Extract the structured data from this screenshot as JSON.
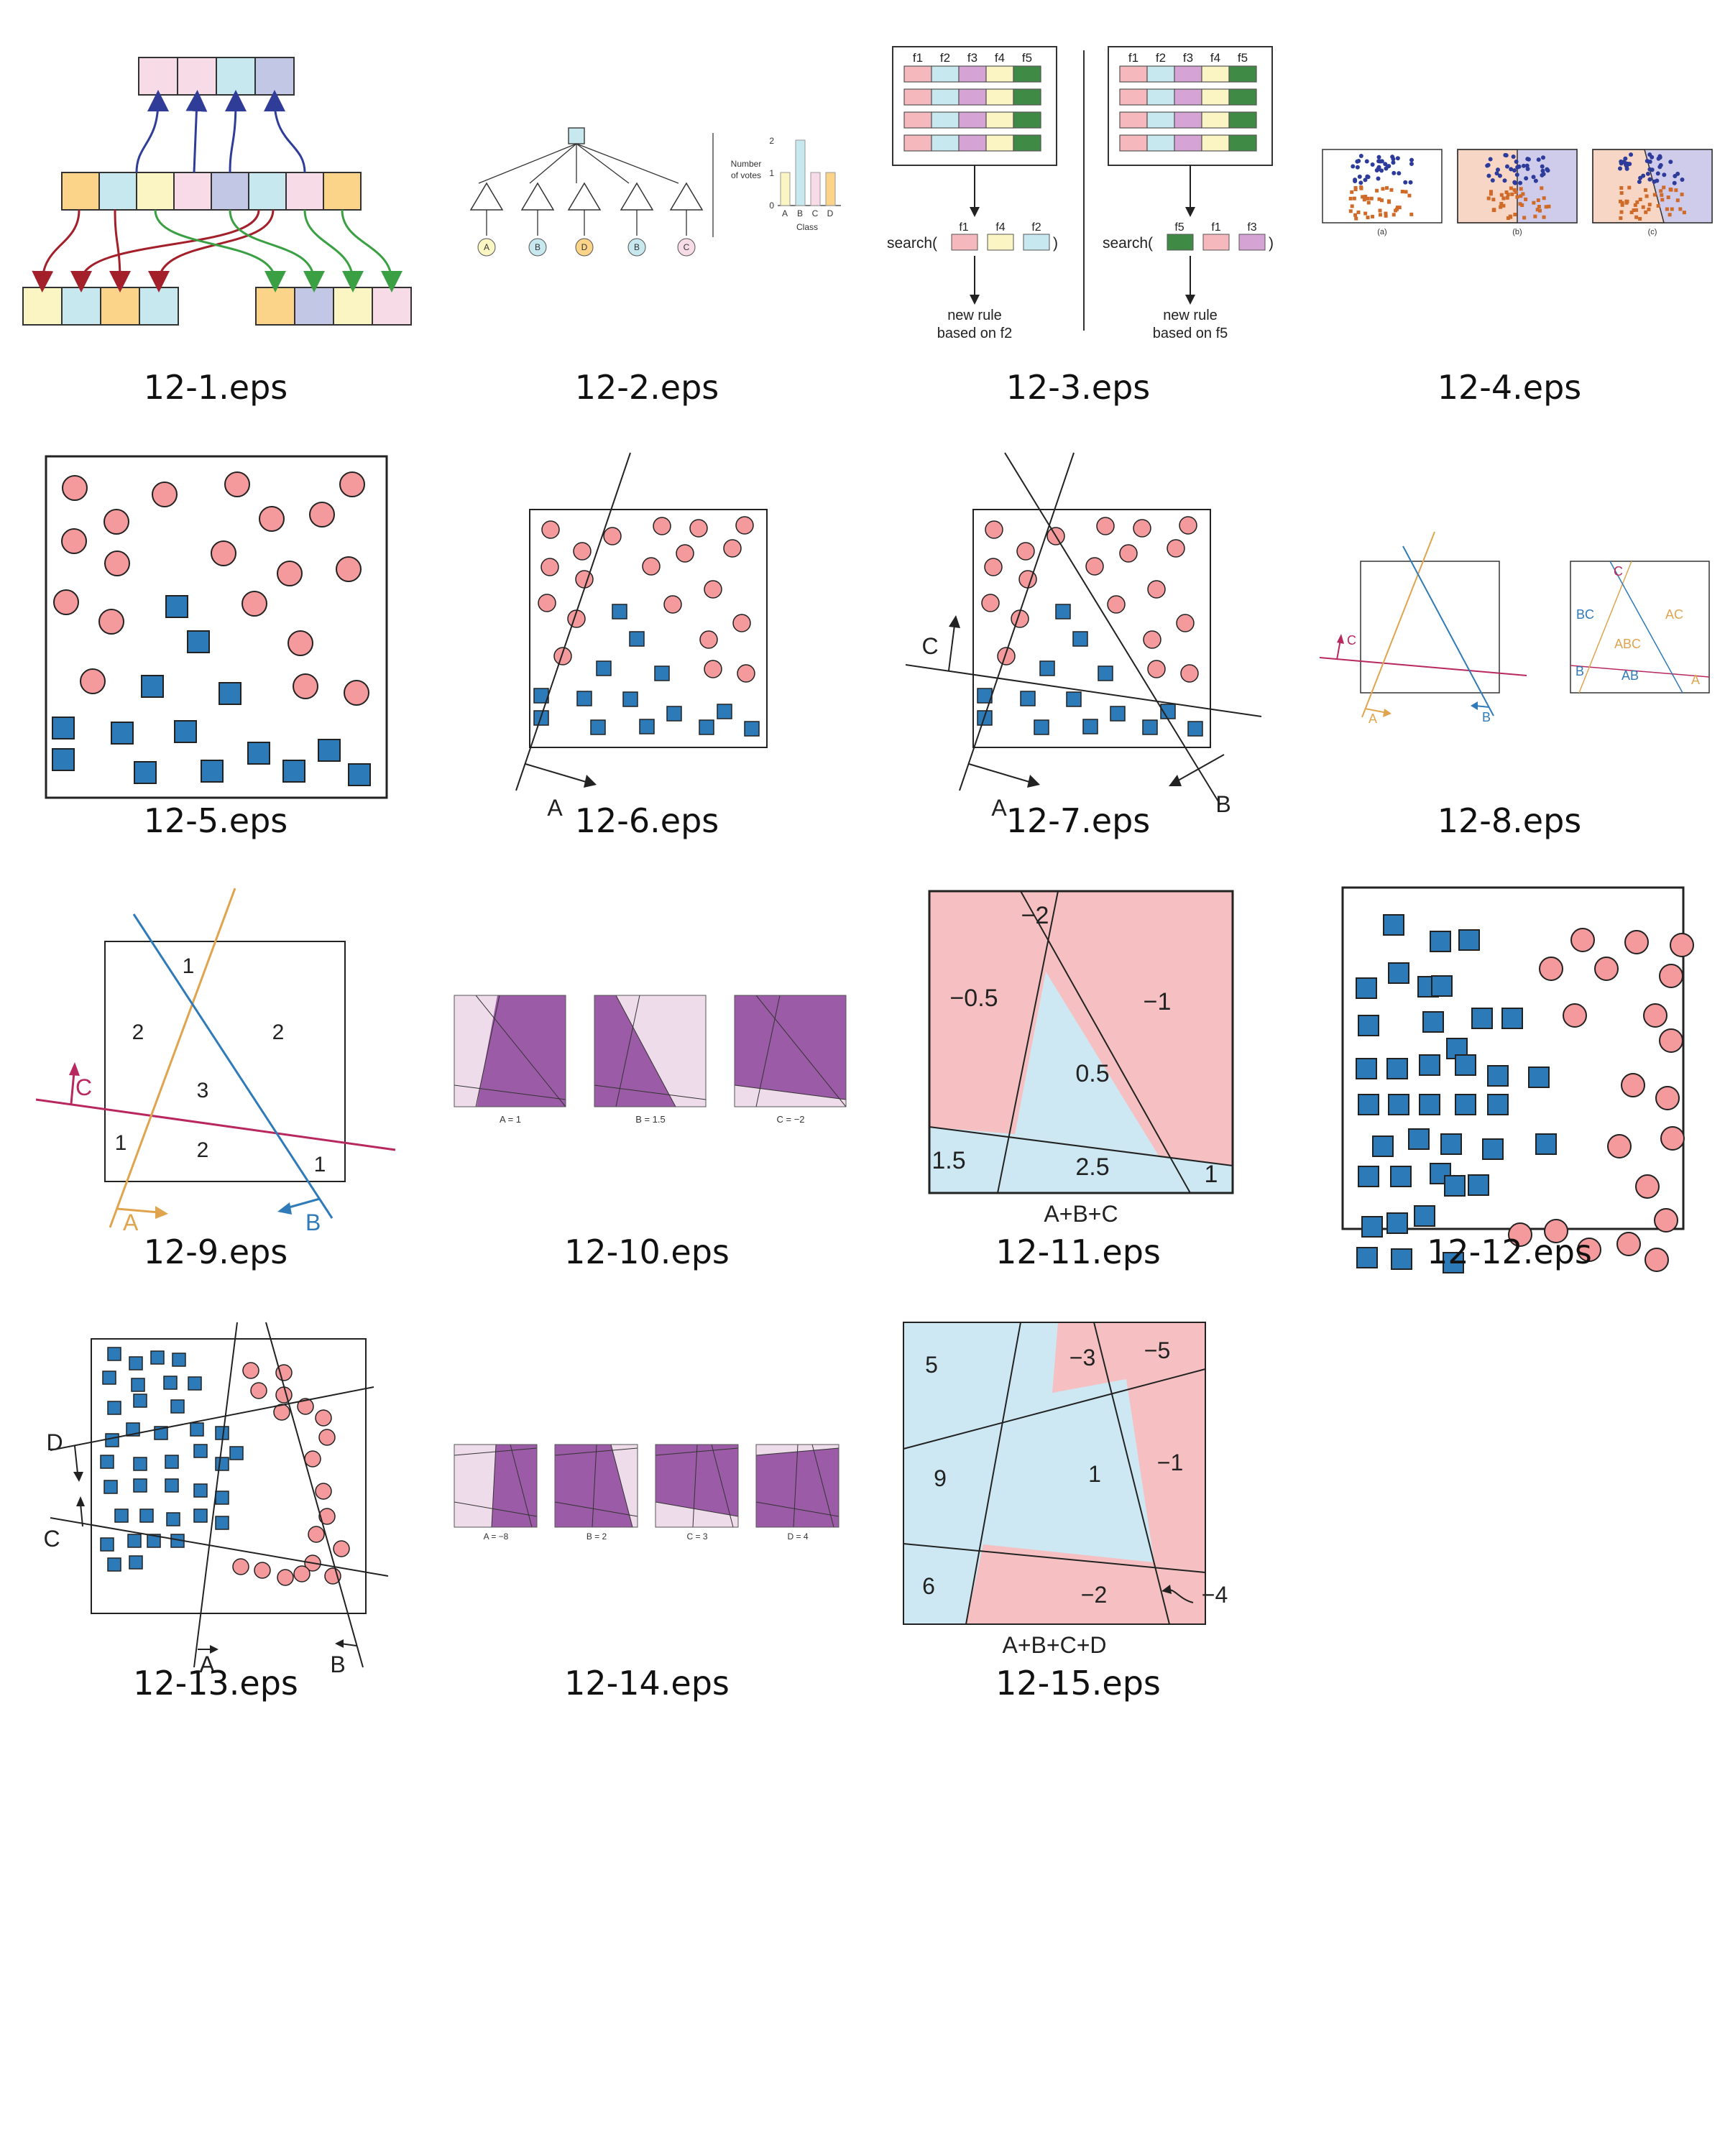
{
  "captions": [
    "12-1.eps",
    "12-2.eps",
    "12-3.eps",
    "12-4.eps",
    "12-5.eps",
    "12-6.eps",
    "12-7.eps",
    "12-8.eps",
    "12-9.eps",
    "12-10.eps",
    "12-11.eps",
    "12-12.eps",
    "12-13.eps",
    "12-14.eps",
    "12-15.eps"
  ],
  "colors": {
    "pink": "#f7dce8",
    "blue": "#c8e8f0",
    "yellow": "#fbf5c4",
    "lav": "#c3c7e6",
    "orange": "#fbd489",
    "green": "#3f8b46",
    "mauve": "#d5a3d4",
    "red": "#f49a9c",
    "square": "#2d7ab8",
    "purple": "#9b5ba6",
    "lightpurple": "#eedcea",
    "regionRed": "#f6c0c2",
    "regionBlue": "#cde8f2",
    "dotBlue": "#2d3b9a",
    "dotOrange": "#d06a28",
    "lineOrange": "#e0a44e",
    "lineBlue": "#2f7ab9",
    "lineRed": "#b8285f",
    "arrowRed": "#a31f2a",
    "arrowGreen": "#3aa043",
    "arrowBlue": "#2f3c98"
  },
  "fig2": {
    "ylabel": "Number\nof votes",
    "xlabel": "Class",
    "yticks": [
      "0",
      "1",
      "2"
    ],
    "classes": [
      "A",
      "B",
      "C",
      "D"
    ],
    "votes": [
      1,
      2,
      1,
      1
    ],
    "leaves": [
      "A",
      "B",
      "D",
      "B",
      "C"
    ]
  },
  "fig3": {
    "headers": [
      "f1",
      "f2",
      "f3",
      "f4",
      "f5"
    ],
    "left": {
      "search": "search(",
      "args": [
        "f1",
        "f4",
        "f2"
      ],
      "close": ")",
      "rule": [
        "new rule",
        "based on f2"
      ]
    },
    "right": {
      "search": "search(",
      "args": [
        "f5",
        "f1",
        "f3"
      ],
      "close": ")",
      "rule": [
        "new rule",
        "based on f5"
      ]
    }
  },
  "fig4": {
    "labels": [
      "(a)",
      "(b)",
      "(c)"
    ]
  },
  "fig6": {
    "labels": [
      "A"
    ]
  },
  "fig7": {
    "labels": [
      "A",
      "B",
      "C"
    ]
  },
  "fig8": {
    "left": [
      "C",
      "A",
      "B"
    ],
    "right": [
      "C",
      "BC",
      "AC",
      "ABC",
      "B",
      "AB",
      "A"
    ]
  },
  "fig9": {
    "lines": [
      "A",
      "B",
      "C"
    ],
    "regions": [
      "1",
      "2",
      "2",
      "3",
      "1",
      "2",
      "1"
    ]
  },
  "fig10": {
    "labels": [
      "A = 1",
      "B = 1.5",
      "C = −2"
    ]
  },
  "fig11": {
    "regions": [
      "−2",
      "−0.5",
      "−1",
      "0.5",
      "1.5",
      "2.5",
      "1"
    ],
    "title": "A+B+C"
  },
  "fig13": {
    "labels": [
      "D",
      "C",
      "A",
      "B"
    ]
  },
  "fig14": {
    "labels": [
      "A = −8",
      "B = 2",
      "C = 3",
      "D = 4"
    ]
  },
  "fig15": {
    "regions": [
      "5",
      "−3",
      "−5",
      "9",
      "1",
      "−1",
      "6",
      "−2",
      "−4"
    ],
    "title": "A+B+C+D"
  }
}
